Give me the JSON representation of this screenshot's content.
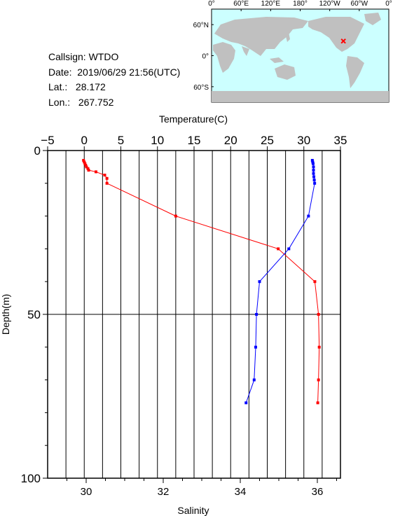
{
  "station": {
    "callsign_label": "Callsign:",
    "callsign": "WTDO",
    "date_label": "Date:",
    "date": "2019/06/29 21:56(UTC)",
    "lat_label": "Lat.:",
    "lat": "28.172",
    "lon_label": "Lon.:",
    "lon": "267.752"
  },
  "map": {
    "top_labels": [
      "0°",
      "60°E",
      "120°E",
      "180°",
      "120°W",
      "60°W",
      "0°"
    ],
    "side_labels": [
      "60°N",
      "0°",
      "60°S"
    ],
    "ocean_color": "#ccffff",
    "land_color": "#c0c0c0",
    "marker_color": "#ff0000",
    "marker_lon": 267.752,
    "marker_lat": 28.172
  },
  "chart_data": {
    "type": "line",
    "top_axis": {
      "label": "Temperature(C)",
      "min": -5,
      "max": 35,
      "ticks": [
        "−5",
        "0",
        "5",
        "10",
        "15",
        "20",
        "25",
        "30",
        "35"
      ]
    },
    "bottom_axis": {
      "label": "Salinity",
      "min": 29,
      "max": 36.6,
      "ticks": [
        "30",
        "32",
        "34",
        "36"
      ]
    },
    "y_axis": {
      "label": "Depth(m)",
      "min": 0,
      "max": 100,
      "inverted": true,
      "ticks": [
        "0",
        "50",
        "100"
      ]
    },
    "grid": "vertical lines at temperature ticks, horizontal line at 50 m",
    "series": [
      {
        "color": "#ff0000",
        "x_axis": "top",
        "points": [
          [
            -0.1,
            3
          ],
          [
            0.0,
            3.5
          ],
          [
            0.1,
            4
          ],
          [
            0.2,
            4.5
          ],
          [
            0.3,
            5
          ],
          [
            0.5,
            5.5
          ],
          [
            0.6,
            6
          ],
          [
            1.6,
            6.5
          ],
          [
            2.8,
            7.5
          ],
          [
            3.1,
            8.5
          ],
          [
            3.1,
            10
          ],
          [
            12.5,
            20
          ],
          [
            26.5,
            30
          ],
          [
            31.5,
            40
          ],
          [
            32.0,
            50
          ],
          [
            32.1,
            60
          ],
          [
            32.0,
            70
          ],
          [
            31.9,
            77
          ]
        ]
      },
      {
        "color": "#0000ff",
        "x_axis": "bottom",
        "points": [
          [
            35.87,
            3
          ],
          [
            35.88,
            3.5
          ],
          [
            35.89,
            4
          ],
          [
            35.9,
            5
          ],
          [
            35.9,
            6
          ],
          [
            35.9,
            7
          ],
          [
            35.91,
            8
          ],
          [
            35.92,
            9
          ],
          [
            35.93,
            10
          ],
          [
            35.77,
            20
          ],
          [
            35.26,
            30
          ],
          [
            34.5,
            40
          ],
          [
            34.42,
            50
          ],
          [
            34.4,
            60
          ],
          [
            34.36,
            70
          ],
          [
            34.15,
            77
          ]
        ]
      }
    ]
  }
}
